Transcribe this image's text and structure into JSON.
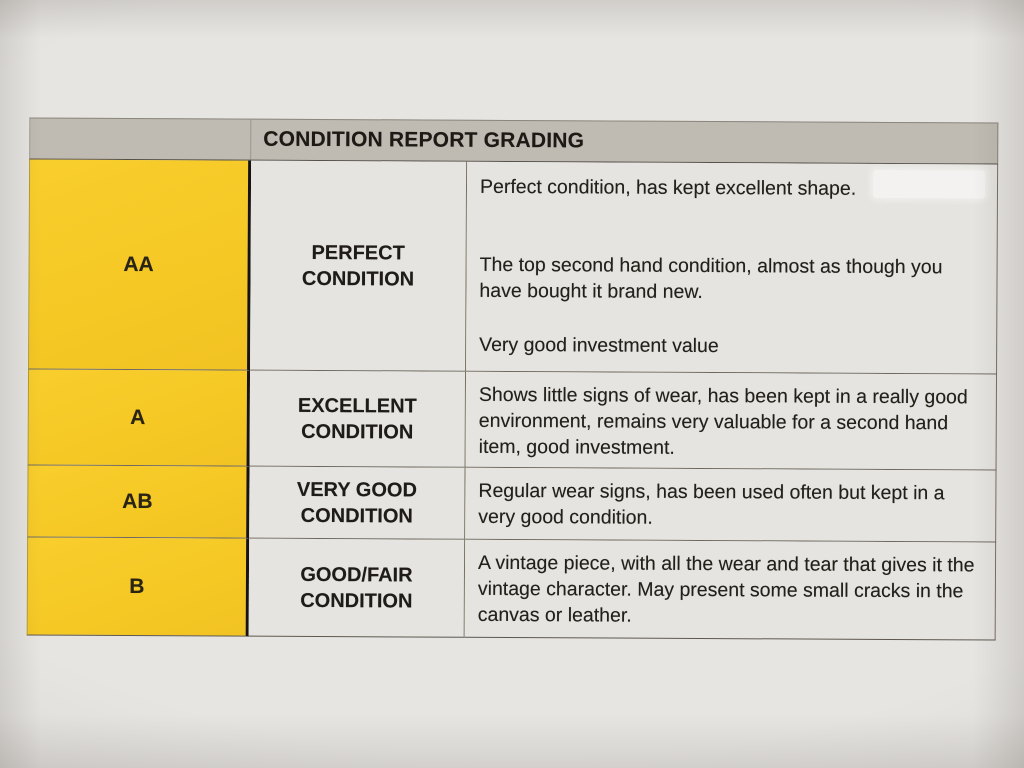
{
  "table": {
    "header_title": "CONDITION REPORT GRADING",
    "rows": [
      {
        "grade": "AA",
        "condition": "PERFECT CONDITION",
        "description": [
          "Perfect condition, has kept excellent shape.",
          "The top second hand condition, almost as though you have bought it brand new.",
          "Very good investment value"
        ]
      },
      {
        "grade": "A",
        "condition": "EXCELLENT CONDITION",
        "description": [
          "Shows little signs of wear, has been kept in a really good environment, remains very valuable for a second hand item, good investment."
        ]
      },
      {
        "grade": "AB",
        "condition": "VERY GOOD CONDITION",
        "description": [
          "Regular wear signs, has been used often but kept in a very good condition."
        ]
      },
      {
        "grade": "B",
        "condition": "GOOD/FAIR CONDITION",
        "description": [
          "A vintage piece, with all the wear and tear that gives it the vintage character. May present some small cracks in the canvas or leather."
        ]
      }
    ],
    "colors": {
      "grade_column_yellow": "#f5c824",
      "header_gray": "#bfbbb3",
      "paper": "#e7e5e2",
      "text": "#242119",
      "thick_divider": "#171310"
    }
  }
}
